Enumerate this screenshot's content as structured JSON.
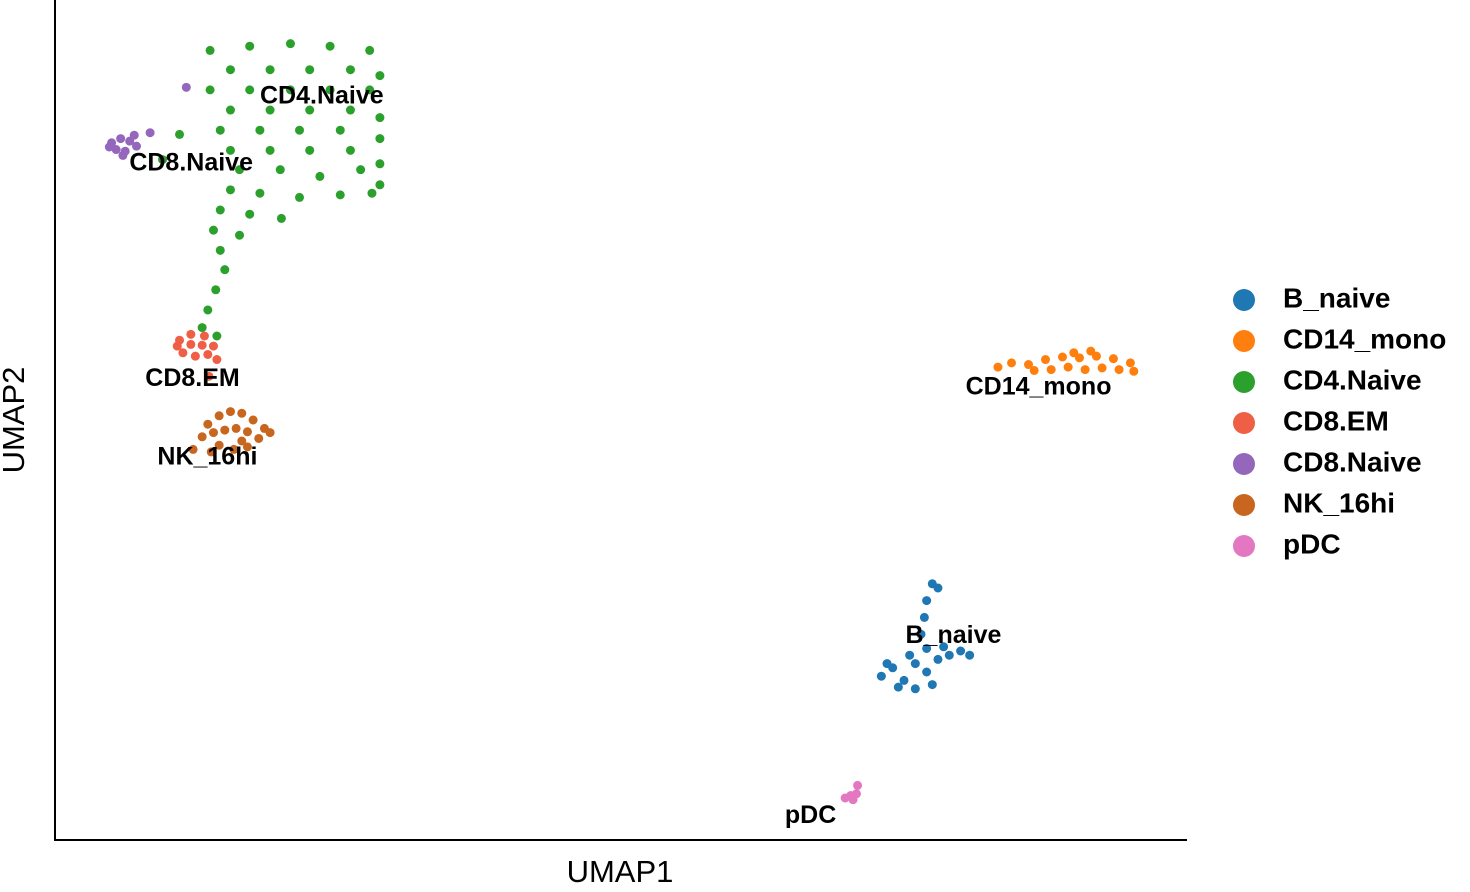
{
  "chart_data": {
    "type": "scatter",
    "x_label": "UMAP1",
    "y_label": "UMAP2",
    "xlim": [
      0,
      100
    ],
    "ylim": [
      0,
      100
    ],
    "legend": "right",
    "point_labels": true,
    "series": [
      {
        "name": "B_naive",
        "color": "#1f77b4",
        "x": [
          73.0,
          74.0,
          75.0,
          76.0,
          77.0,
          78.0,
          79.0,
          80.0,
          80.8,
          74.5,
          76.0,
          77.5,
          75.5,
          78.5,
          77.0,
          76.5,
          76.8,
          77.0,
          77.5,
          78.0,
          73.5
        ],
        "y": [
          19.5,
          20.5,
          19.0,
          21.0,
          20.0,
          21.5,
          22.0,
          22.5,
          22.0,
          18.2,
          18.0,
          18.5,
          22.0,
          23.0,
          22.8,
          24.5,
          26.5,
          28.5,
          30.5,
          30.0,
          21.0
        ]
      },
      {
        "name": "CD14_mono",
        "color": "#ff7f0e",
        "x": [
          83.3,
          84.5,
          86.0,
          87.5,
          89.0,
          90.5,
          92.0,
          93.5,
          95.0,
          88.0,
          89.5,
          91.0,
          92.5,
          94.0,
          90.0,
          91.5,
          86.5,
          95.3
        ],
        "y": [
          56.3,
          56.8,
          56.6,
          57.2,
          57.5,
          57.4,
          57.6,
          57.3,
          56.8,
          56.0,
          56.3,
          56.0,
          56.2,
          56.0,
          58.0,
          58.2,
          55.9,
          55.8
        ]
      },
      {
        "name": "CD4.Naive",
        "color": "#2ca02c",
        "x": [
          13.7,
          17.2,
          20.8,
          24.3,
          27.8,
          15.5,
          19.0,
          22.5,
          26.1,
          28.7,
          13.7,
          17.2,
          20.8,
          24.3,
          27.8,
          15.5,
          19.0,
          22.5,
          26.1,
          28.7,
          14.6,
          18.1,
          21.6,
          25.2,
          28.7,
          15.5,
          19.0,
          22.5,
          26.1,
          28.7,
          16.3,
          19.9,
          23.4,
          27.0,
          28.7,
          15.5,
          18.1,
          21.6,
          25.2,
          28.0,
          14.6,
          17.2,
          20.0,
          14.0,
          16.3,
          14.6,
          15.0,
          14.2,
          13.5,
          13.0,
          14.3,
          11.0,
          9.5
        ],
        "y": [
          94.0,
          94.5,
          94.8,
          94.5,
          94.0,
          91.7,
          91.7,
          91.7,
          91.7,
          91.0,
          89.3,
          89.3,
          89.3,
          89.3,
          89.3,
          86.9,
          86.9,
          86.9,
          86.9,
          86.0,
          84.5,
          84.5,
          84.5,
          84.5,
          83.5,
          82.1,
          82.1,
          82.1,
          82.1,
          80.5,
          79.8,
          79.8,
          79.0,
          79.8,
          78.0,
          77.4,
          77.0,
          76.5,
          76.8,
          77.0,
          75.0,
          74.5,
          74.0,
          72.6,
          72.0,
          70.2,
          67.9,
          65.5,
          63.1,
          61.0,
          60.0,
          84.0,
          81.0
        ]
      },
      {
        "name": "CD8.EM",
        "color": "#ee5f45",
        "x": [
          11.0,
          12.0,
          13.2,
          14.0,
          11.3,
          12.4,
          13.5,
          12.0,
          13.0,
          10.8,
          14.3,
          13.6
        ],
        "y": [
          59.5,
          60.2,
          60.0,
          58.8,
          58.0,
          57.6,
          57.8,
          59.0,
          58.9,
          58.8,
          57.2,
          55.2
        ]
      },
      {
        "name": "CD8.Naive",
        "color": "#9467bd",
        "x": [
          5.0,
          5.8,
          6.6,
          7.2,
          5.4,
          6.2,
          7.0,
          4.8,
          6.0,
          8.4,
          11.6
        ],
        "y": [
          83.0,
          83.5,
          83.2,
          82.6,
          82.2,
          82.0,
          83.9,
          82.5,
          81.5,
          84.2,
          89.6
        ]
      },
      {
        "name": "NK_16hi",
        "color": "#c8651e",
        "x": [
          13.5,
          14.5,
          15.5,
          16.5,
          17.5,
          18.5,
          19.0,
          13.0,
          14.0,
          15.0,
          16.0,
          17.0,
          18.0,
          14.5,
          15.8,
          17.0,
          13.8,
          16.5,
          12.2
        ],
        "y": [
          49.5,
          50.5,
          51.0,
          50.8,
          50.0,
          49.0,
          48.5,
          48.0,
          48.5,
          48.8,
          49.0,
          48.6,
          47.8,
          47.0,
          46.5,
          46.8,
          46.2,
          47.5,
          46.5
        ]
      },
      {
        "name": "pDC",
        "color": "#e377c2",
        "x": [
          69.8,
          70.3,
          70.8,
          70.5,
          70.9
        ],
        "y": [
          5.0,
          5.3,
          5.5,
          4.8,
          6.5
        ]
      }
    ]
  }
}
